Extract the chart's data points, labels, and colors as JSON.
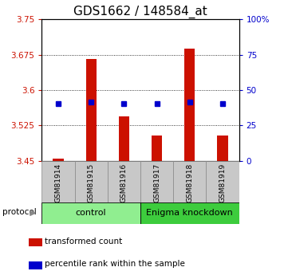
{
  "title": "GDS1662 / 148584_at",
  "samples": [
    "GSM81914",
    "GSM81915",
    "GSM81916",
    "GSM81917",
    "GSM81918",
    "GSM81919"
  ],
  "red_values": [
    3.455,
    3.665,
    3.545,
    3.503,
    3.688,
    3.503
  ],
  "blue_values": [
    3.572,
    3.575,
    3.572,
    3.572,
    3.575,
    3.572
  ],
  "ylim_left": [
    3.45,
    3.75
  ],
  "yticks_left": [
    3.45,
    3.525,
    3.6,
    3.675,
    3.75
  ],
  "ytick_labels_left": [
    "3.45",
    "3.525",
    "3.6",
    "3.675",
    "3.75"
  ],
  "yticks_right": [
    0,
    25,
    50,
    75,
    100
  ],
  "ytick_labels_right": [
    "0",
    "25",
    "50",
    "75",
    "100%"
  ],
  "ylim_right": [
    0,
    100
  ],
  "grid_values": [
    3.525,
    3.6,
    3.675
  ],
  "ctrl_label": "control",
  "enigma_label": "Enigma knockdown",
  "ctrl_color": "#90EE90",
  "enigma_color": "#3DCC3D",
  "legend_red": "transformed count",
  "legend_blue": "percentile rank within the sample",
  "protocol_label": "protocol",
  "bar_color": "#CC1100",
  "dot_color": "#0000CC",
  "bg_color": "#C8C8C8",
  "title_fontsize": 11,
  "tick_color_left": "#CC1100",
  "tick_color_right": "#0000CC"
}
